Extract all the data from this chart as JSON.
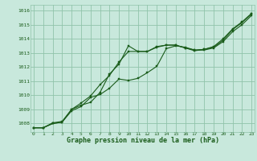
{
  "title": "Graphe pression niveau de la mer (hPa)",
  "xlim": [
    -0.3,
    23.3
  ],
  "ylim": [
    1007.4,
    1016.4
  ],
  "yticks": [
    1008,
    1009,
    1010,
    1011,
    1012,
    1013,
    1014,
    1015,
    1016
  ],
  "xticks": [
    0,
    1,
    2,
    3,
    4,
    5,
    6,
    7,
    8,
    9,
    10,
    11,
    12,
    13,
    14,
    15,
    16,
    17,
    18,
    19,
    20,
    21,
    22,
    23
  ],
  "bg_color": "#c8e8dc",
  "line_color": "#1a5c1a",
  "grid_color": "#90c4aa",
  "line1_y": [
    1007.7,
    1007.7,
    1008.0,
    1008.1,
    1009.0,
    1009.3,
    1009.5,
    1010.2,
    1011.5,
    1012.2,
    1013.5,
    1013.1,
    1013.1,
    1013.4,
    1013.55,
    1013.55,
    1013.35,
    1013.15,
    1013.25,
    1013.4,
    1013.9,
    1014.65,
    1015.15,
    1015.75
  ],
  "line2_y": [
    1007.7,
    1007.7,
    1008.05,
    1008.15,
    1009.0,
    1009.45,
    1009.95,
    1010.75,
    1011.4,
    1012.35,
    1013.1,
    1013.1,
    1013.1,
    1013.45,
    1013.55,
    1013.55,
    1013.35,
    1013.2,
    1013.25,
    1013.45,
    1014.0,
    1014.7,
    1015.2,
    1015.8
  ],
  "line3_y": [
    1007.7,
    1007.7,
    1008.0,
    1008.1,
    1008.9,
    1009.2,
    1009.85,
    1010.05,
    1010.5,
    1011.15,
    1011.05,
    1011.2,
    1011.6,
    1012.05,
    1013.3,
    1013.5,
    1013.4,
    1013.2,
    1013.2,
    1013.35,
    1013.8,
    1014.5,
    1015.0,
    1015.65
  ]
}
